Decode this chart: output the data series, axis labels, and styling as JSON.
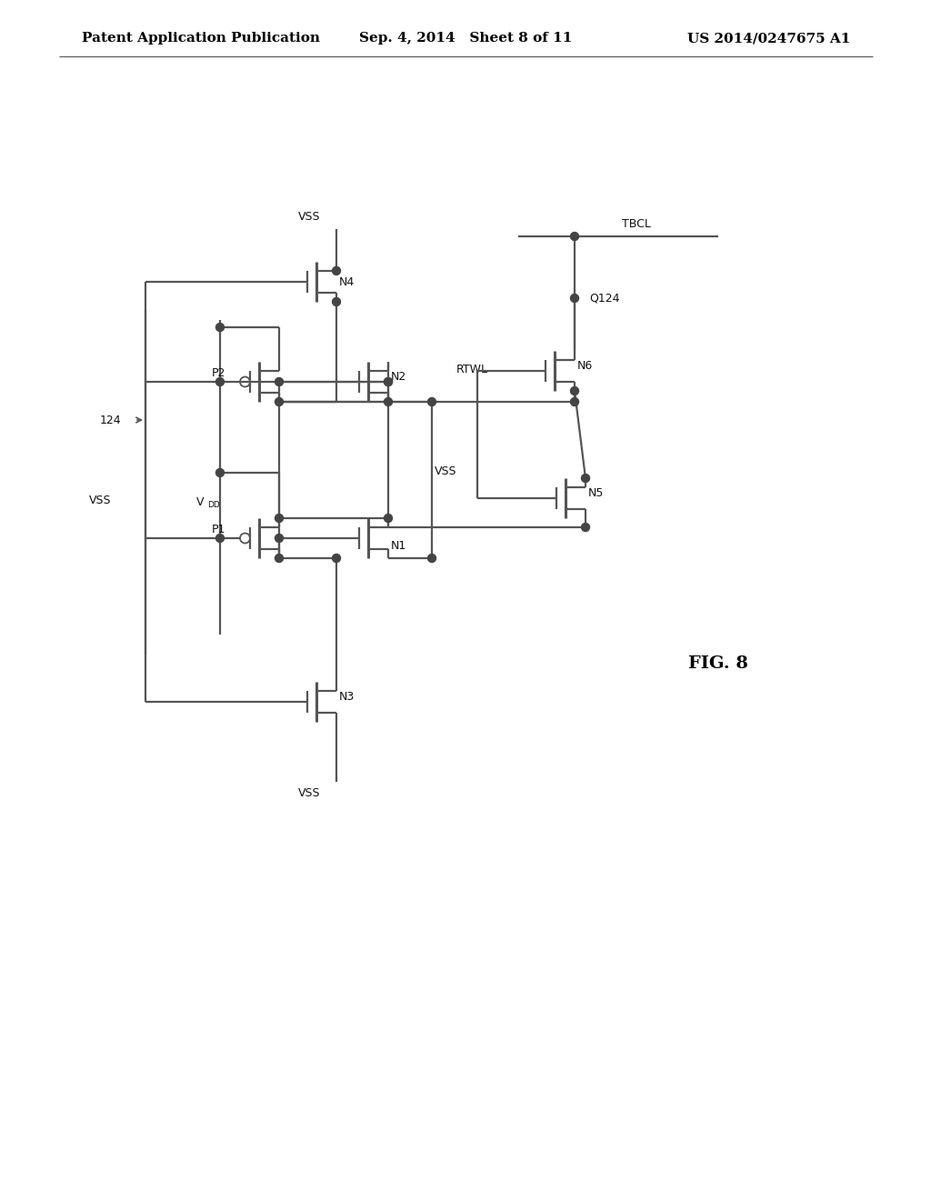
{
  "header_left": "Patent Application Publication",
  "header_center": "Sep. 4, 2014   Sheet 8 of 11",
  "header_right": "US 2014/0247675 A1",
  "fig_label": "FIG. 8",
  "bg": "#ffffff",
  "lc": "#555555",
  "tc": "#111111"
}
